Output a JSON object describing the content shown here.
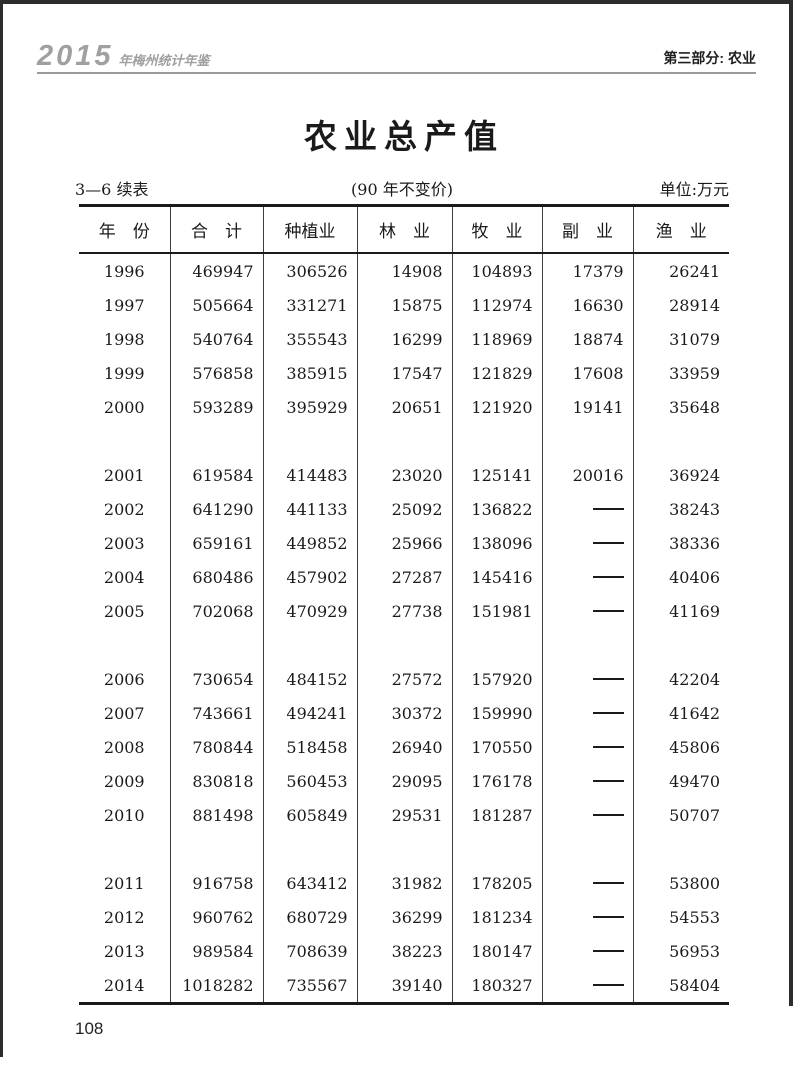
{
  "page": {
    "header": {
      "yearbook_logo_year": "2015",
      "yearbook_logo_text": "年梅州统计年鉴",
      "section_label": "第三部分: 农业"
    },
    "title": "农业总产值",
    "table_meta": {
      "table_number": "3—6 续表",
      "price_note": "(90 年不变价)",
      "unit_label": "单位:万元"
    },
    "page_number": "108"
  },
  "colors": {
    "page_background": "#ffffff",
    "scan_edge": "#2c2c2c",
    "logo_gray": "#a0a0a0",
    "header_rule_gray": "#9a9a9a",
    "text": "#1a1a1a"
  },
  "table": {
    "columns": [
      "年　份",
      "合　计",
      "种植业",
      "林　业",
      "牧　业",
      "副　业",
      "渔　业"
    ],
    "missing_value_symbol": "——",
    "groups": [
      {
        "rows": [
          [
            "1996",
            "469947",
            "306526",
            "14908",
            "104893",
            "17379",
            "26241"
          ],
          [
            "1997",
            "505664",
            "331271",
            "15875",
            "112974",
            "16630",
            "28914"
          ],
          [
            "1998",
            "540764",
            "355543",
            "16299",
            "118969",
            "18874",
            "31079"
          ],
          [
            "1999",
            "576858",
            "385915",
            "17547",
            "121829",
            "17608",
            "33959"
          ],
          [
            "2000",
            "593289",
            "395929",
            "20651",
            "121920",
            "19141",
            "35648"
          ]
        ]
      },
      {
        "rows": [
          [
            "2001",
            "619584",
            "414483",
            "23020",
            "125141",
            "20016",
            "36924"
          ],
          [
            "2002",
            "641290",
            "441133",
            "25092",
            "136822",
            "——",
            "38243"
          ],
          [
            "2003",
            "659161",
            "449852",
            "25966",
            "138096",
            "——",
            "38336"
          ],
          [
            "2004",
            "680486",
            "457902",
            "27287",
            "145416",
            "——",
            "40406"
          ],
          [
            "2005",
            "702068",
            "470929",
            "27738",
            "151981",
            "——",
            "41169"
          ]
        ]
      },
      {
        "rows": [
          [
            "2006",
            "730654",
            "484152",
            "27572",
            "157920",
            "——",
            "42204"
          ],
          [
            "2007",
            "743661",
            "494241",
            "30372",
            "159990",
            "——",
            "41642"
          ],
          [
            "2008",
            "780844",
            "518458",
            "26940",
            "170550",
            "——",
            "45806"
          ],
          [
            "2009",
            "830818",
            "560453",
            "29095",
            "176178",
            "——",
            "49470"
          ],
          [
            "2010",
            "881498",
            "605849",
            "29531",
            "181287",
            "——",
            "50707"
          ]
        ]
      },
      {
        "rows": [
          [
            "2011",
            "916758",
            "643412",
            "31982",
            "178205",
            "——",
            "53800"
          ],
          [
            "2012",
            "960762",
            "680729",
            "36299",
            "181234",
            "——",
            "54553"
          ],
          [
            "2013",
            "989584",
            "708639",
            "38223",
            "180147",
            "——",
            "56953"
          ],
          [
            "2014",
            "1018282",
            "735567",
            "39140",
            "180327",
            "——",
            "58404"
          ]
        ]
      }
    ]
  }
}
